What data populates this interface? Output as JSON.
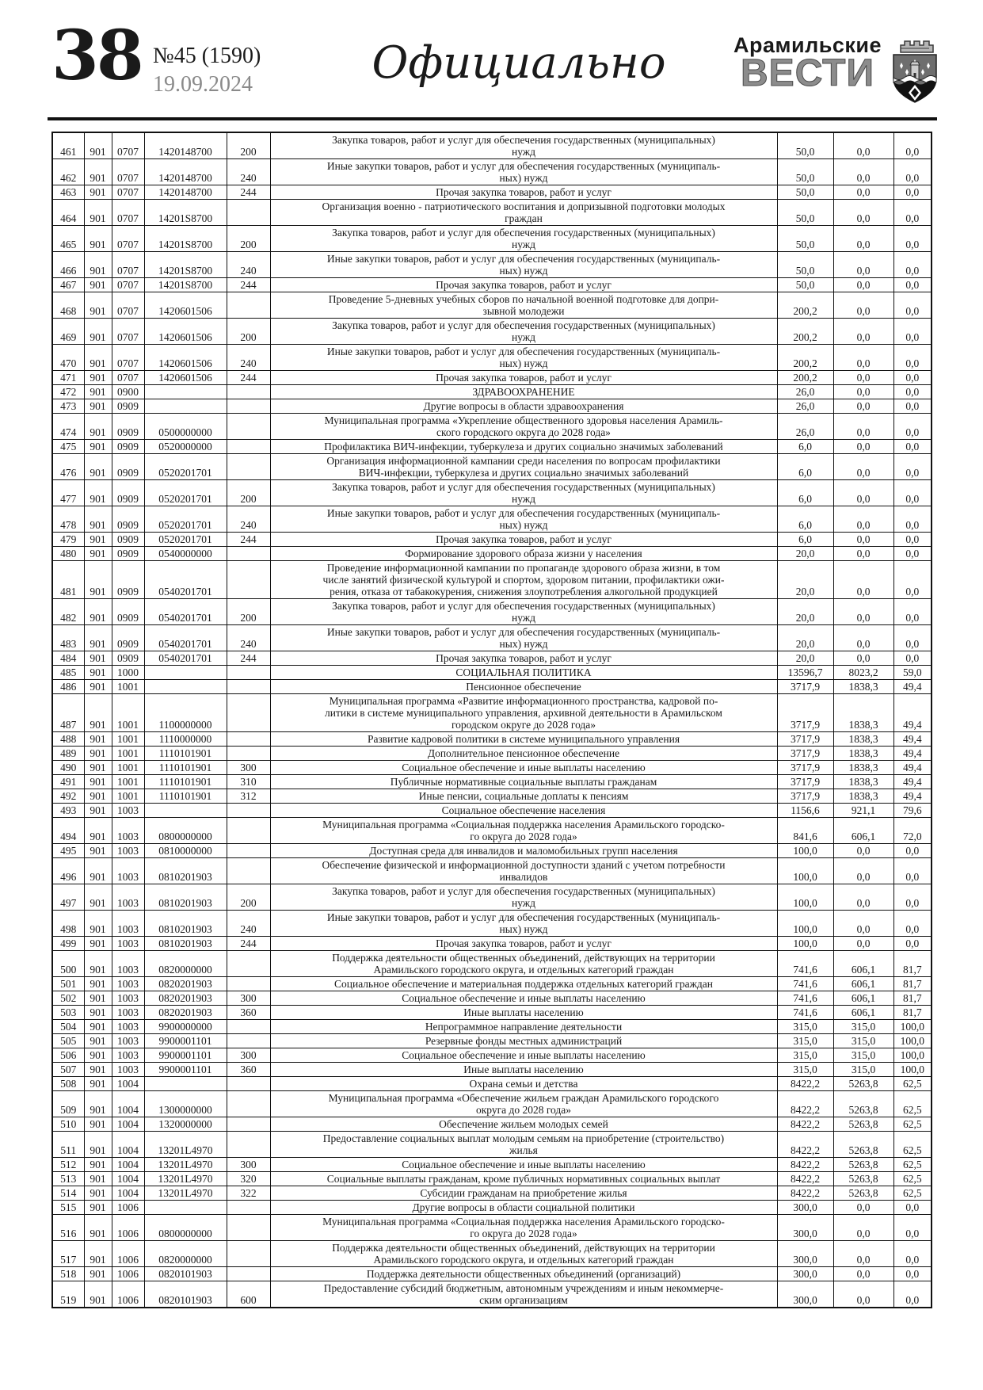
{
  "colors": {
    "ink": "#1a1a1a",
    "date_gray": "#8a8a8a",
    "masthead_gray": "#8c8c8c",
    "rule_black": "#111111"
  },
  "header": {
    "page_number": "38",
    "issue": "№45 (1590)",
    "date": "19.09.2024",
    "section_title": "Официально",
    "masthead_line1": "Арамильские",
    "masthead_line2": "ВЕСТИ",
    "crest_icon": "city-coat-of-arms"
  },
  "table": {
    "columns": [
      "row_number",
      "grbs_code",
      "section_code",
      "target_article",
      "expense_type",
      "name",
      "plan",
      "executed",
      "percent"
    ],
    "rows": [
      [
        "461",
        "901",
        "0707",
        "1420148700",
        "200",
        "Закупка товаров, работ и услуг для обеспечения государственных (муниципальных)\nнужд",
        "50,0",
        "0,0",
        "0,0"
      ],
      [
        "462",
        "901",
        "0707",
        "1420148700",
        "240",
        "Иные закупки товаров, работ и услуг для обеспечения государственных (муниципаль-\nных) нужд",
        "50,0",
        "0,0",
        "0,0"
      ],
      [
        "463",
        "901",
        "0707",
        "1420148700",
        "244",
        "Прочая закупка товаров, работ и услуг",
        "50,0",
        "0,0",
        "0,0"
      ],
      [
        "464",
        "901",
        "0707",
        "14201S8700",
        "",
        "Организация военно - патриотического воспитания и допризывной подготовки молодых\nграждан",
        "50,0",
        "0,0",
        "0,0"
      ],
      [
        "465",
        "901",
        "0707",
        "14201S8700",
        "200",
        "Закупка товаров, работ и услуг для обеспечения государственных (муниципальных)\nнужд",
        "50,0",
        "0,0",
        "0,0"
      ],
      [
        "466",
        "901",
        "0707",
        "14201S8700",
        "240",
        "Иные закупки товаров, работ и услуг для обеспечения государственных (муниципаль-\nных) нужд",
        "50,0",
        "0,0",
        "0,0"
      ],
      [
        "467",
        "901",
        "0707",
        "14201S8700",
        "244",
        "Прочая закупка товаров, работ и услуг",
        "50,0",
        "0,0",
        "0,0"
      ],
      [
        "468",
        "901",
        "0707",
        "1420601506",
        "",
        "Проведение 5-дневных учебных сборов по начальной военной подготовке для допри-\nзывной молодежи",
        "200,2",
        "0,0",
        "0,0"
      ],
      [
        "469",
        "901",
        "0707",
        "1420601506",
        "200",
        "Закупка товаров, работ и услуг для обеспечения государственных (муниципальных)\nнужд",
        "200,2",
        "0,0",
        "0,0"
      ],
      [
        "470",
        "901",
        "0707",
        "1420601506",
        "240",
        "Иные закупки товаров, работ и услуг для обеспечения государственных (муниципаль-\nных) нужд",
        "200,2",
        "0,0",
        "0,0"
      ],
      [
        "471",
        "901",
        "0707",
        "1420601506",
        "244",
        "Прочая закупка товаров, работ и услуг",
        "200,2",
        "0,0",
        "0,0"
      ],
      [
        "472",
        "901",
        "0900",
        "",
        "",
        "ЗДРАВООХРАНЕНИЕ",
        "26,0",
        "0,0",
        "0,0"
      ],
      [
        "473",
        "901",
        "0909",
        "",
        "",
        "Другие вопросы в области здравоохранения",
        "26,0",
        "0,0",
        "0,0"
      ],
      [
        "474",
        "901",
        "0909",
        "0500000000",
        "",
        "Муниципальная программа «Укрепление общественного здоровья населения Арамиль-\nского городского округа до 2028 года»",
        "26,0",
        "0,0",
        "0,0"
      ],
      [
        "475",
        "901",
        "0909",
        "0520000000",
        "",
        "Профилактика ВИЧ-инфекции, туберкулеза и других социально значимых заболеваний",
        "6,0",
        "0,0",
        "0,0"
      ],
      [
        "476",
        "901",
        "0909",
        "0520201701",
        "",
        "Организация информационной кампании среди населения по вопросам профилактики\nВИЧ-инфекции, туберкулеза и других социально значимых заболеваний",
        "6,0",
        "0,0",
        "0,0"
      ],
      [
        "477",
        "901",
        "0909",
        "0520201701",
        "200",
        "Закупка товаров, работ и услуг для обеспечения государственных (муниципальных)\nнужд",
        "6,0",
        "0,0",
        "0,0"
      ],
      [
        "478",
        "901",
        "0909",
        "0520201701",
        "240",
        "Иные закупки товаров, работ и услуг для обеспечения государственных (муниципаль-\nных) нужд",
        "6,0",
        "0,0",
        "0,0"
      ],
      [
        "479",
        "901",
        "0909",
        "0520201701",
        "244",
        "Прочая закупка товаров, работ и услуг",
        "6,0",
        "0,0",
        "0,0"
      ],
      [
        "480",
        "901",
        "0909",
        "0540000000",
        "",
        "Формирование здорового образа жизни у населения",
        "20,0",
        "0,0",
        "0,0"
      ],
      [
        "481",
        "901",
        "0909",
        "0540201701",
        "",
        "Проведение информационной кампании по пропаганде здорового образа жизни, в том\nчисле занятий физической культурой и спортом, здоровом питании, профилактики ожи-\nрения, отказа от табакокурения, снижения злоупотребления алкогольной продукцией",
        "20,0",
        "0,0",
        "0,0"
      ],
      [
        "482",
        "901",
        "0909",
        "0540201701",
        "200",
        "Закупка товаров, работ и услуг для обеспечения государственных (муниципальных)\nнужд",
        "20,0",
        "0,0",
        "0,0"
      ],
      [
        "483",
        "901",
        "0909",
        "0540201701",
        "240",
        "Иные закупки товаров, работ и услуг для обеспечения государственных (муниципаль-\nных) нужд",
        "20,0",
        "0,0",
        "0,0"
      ],
      [
        "484",
        "901",
        "0909",
        "0540201701",
        "244",
        "Прочая закупка товаров, работ и услуг",
        "20,0",
        "0,0",
        "0,0"
      ],
      [
        "485",
        "901",
        "1000",
        "",
        "",
        "СОЦИАЛЬНАЯ ПОЛИТИКА",
        "13596,7",
        "8023,2",
        "59,0"
      ],
      [
        "486",
        "901",
        "1001",
        "",
        "",
        "Пенсионное обеспечение",
        "3717,9",
        "1838,3",
        "49,4"
      ],
      [
        "487",
        "901",
        "1001",
        "1100000000",
        "",
        "Муниципальная программа «Развитие информационного пространства, кадровой по-\nлитики в системе муниципального управления, архивной деятельности в Арамильском\nгородском округе до 2028 года»",
        "3717,9",
        "1838,3",
        "49,4"
      ],
      [
        "488",
        "901",
        "1001",
        "1110000000",
        "",
        "Развитие кадровой политики в системе муниципального управления",
        "3717,9",
        "1838,3",
        "49,4"
      ],
      [
        "489",
        "901",
        "1001",
        "1110101901",
        "",
        "Дополнительное пенсионное обеспечение",
        "3717,9",
        "1838,3",
        "49,4"
      ],
      [
        "490",
        "901",
        "1001",
        "1110101901",
        "300",
        "Социальное обеспечение и иные выплаты населению",
        "3717,9",
        "1838,3",
        "49,4"
      ],
      [
        "491",
        "901",
        "1001",
        "1110101901",
        "310",
        "Публичные нормативные социальные выплаты гражданам",
        "3717,9",
        "1838,3",
        "49,4"
      ],
      [
        "492",
        "901",
        "1001",
        "1110101901",
        "312",
        "Иные пенсии, социальные доплаты к пенсиям",
        "3717,9",
        "1838,3",
        "49,4"
      ],
      [
        "493",
        "901",
        "1003",
        "",
        "",
        "Социальное обеспечение населения",
        "1156,6",
        "921,1",
        "79,6"
      ],
      [
        "494",
        "901",
        "1003",
        "0800000000",
        "",
        "Муниципальная программа «Социальная поддержка населения Арамильского городско-\nго округа до 2028 года»",
        "841,6",
        "606,1",
        "72,0"
      ],
      [
        "495",
        "901",
        "1003",
        "0810000000",
        "",
        "Доступная среда для инвалидов и маломобильных групп населения",
        "100,0",
        "0,0",
        "0,0"
      ],
      [
        "496",
        "901",
        "1003",
        "0810201903",
        "",
        "Обеспечение физической и информационной доступности зданий с учетом потребности\nинвалидов",
        "100,0",
        "0,0",
        "0,0"
      ],
      [
        "497",
        "901",
        "1003",
        "0810201903",
        "200",
        "Закупка товаров, работ и услуг для обеспечения государственных (муниципальных)\nнужд",
        "100,0",
        "0,0",
        "0,0"
      ],
      [
        "498",
        "901",
        "1003",
        "0810201903",
        "240",
        "Иные закупки товаров, работ и услуг для обеспечения государственных (муниципаль-\nных) нужд",
        "100,0",
        "0,0",
        "0,0"
      ],
      [
        "499",
        "901",
        "1003",
        "0810201903",
        "244",
        "Прочая закупка товаров, работ и услуг",
        "100,0",
        "0,0",
        "0,0"
      ],
      [
        "500",
        "901",
        "1003",
        "0820000000",
        "",
        "Поддержка деятельности общественных объединений, действующих на территории\nАрамильского городского округа, и отдельных категорий граждан",
        "741,6",
        "606,1",
        "81,7"
      ],
      [
        "501",
        "901",
        "1003",
        "0820201903",
        "",
        "Социальное обеспечение и материальная поддержка отдельных категорий граждан",
        "741,6",
        "606,1",
        "81,7"
      ],
      [
        "502",
        "901",
        "1003",
        "0820201903",
        "300",
        "Социальное обеспечение и иные выплаты населению",
        "741,6",
        "606,1",
        "81,7"
      ],
      [
        "503",
        "901",
        "1003",
        "0820201903",
        "360",
        "Иные выплаты населению",
        "741,6",
        "606,1",
        "81,7"
      ],
      [
        "504",
        "901",
        "1003",
        "9900000000",
        "",
        "Непрограммное направление деятельности",
        "315,0",
        "315,0",
        "100,0"
      ],
      [
        "505",
        "901",
        "1003",
        "9900001101",
        "",
        "Резервные фонды местных администраций",
        "315,0",
        "315,0",
        "100,0"
      ],
      [
        "506",
        "901",
        "1003",
        "9900001101",
        "300",
        "Социальное обеспечение и иные выплаты населению",
        "315,0",
        "315,0",
        "100,0"
      ],
      [
        "507",
        "901",
        "1003",
        "9900001101",
        "360",
        "Иные выплаты населению",
        "315,0",
        "315,0",
        "100,0"
      ],
      [
        "508",
        "901",
        "1004",
        "",
        "",
        "Охрана семьи и детства",
        "8422,2",
        "5263,8",
        "62,5"
      ],
      [
        "509",
        "901",
        "1004",
        "1300000000",
        "",
        "Муниципальная программа «Обеспечение жильем граждан Арамильского городского\nокруга до 2028 года»",
        "8422,2",
        "5263,8",
        "62,5"
      ],
      [
        "510",
        "901",
        "1004",
        "1320000000",
        "",
        "Обеспечение жильем молодых семей",
        "8422,2",
        "5263,8",
        "62,5"
      ],
      [
        "511",
        "901",
        "1004",
        "13201L4970",
        "",
        "Предоставление социальных выплат молодым семьям на приобретение (строительство)\nжилья",
        "8422,2",
        "5263,8",
        "62,5"
      ],
      [
        "512",
        "901",
        "1004",
        "13201L4970",
        "300",
        "Социальное обеспечение и иные выплаты населению",
        "8422,2",
        "5263,8",
        "62,5"
      ],
      [
        "513",
        "901",
        "1004",
        "13201L4970",
        "320",
        "Социальные выплаты гражданам, кроме публичных нормативных социальных выплат",
        "8422,2",
        "5263,8",
        "62,5"
      ],
      [
        "514",
        "901",
        "1004",
        "13201L4970",
        "322",
        "Субсидии гражданам на приобретение жилья",
        "8422,2",
        "5263,8",
        "62,5"
      ],
      [
        "515",
        "901",
        "1006",
        "",
        "",
        "Другие вопросы в области социальной политики",
        "300,0",
        "0,0",
        "0,0"
      ],
      [
        "516",
        "901",
        "1006",
        "0800000000",
        "",
        "Муниципальная программа «Социальная поддержка населения Арамильского городско-\nго округа до 2028 года»",
        "300,0",
        "0,0",
        "0,0"
      ],
      [
        "517",
        "901",
        "1006",
        "0820000000",
        "",
        "Поддержка деятельности общественных объединений, действующих на территории\nАрамильского городского округа, и отдельных категорий граждан",
        "300,0",
        "0,0",
        "0,0"
      ],
      [
        "518",
        "901",
        "1006",
        "0820101903",
        "",
        "Поддержка деятельности общественных объединений (организаций)",
        "300,0",
        "0,0",
        "0,0"
      ],
      [
        "519",
        "901",
        "1006",
        "0820101903",
        "600",
        "Предоставление субсидий бюджетным, автономным учреждениям и иным некоммерче-\nским организациям",
        "300,0",
        "0,0",
        "0,0"
      ]
    ]
  }
}
